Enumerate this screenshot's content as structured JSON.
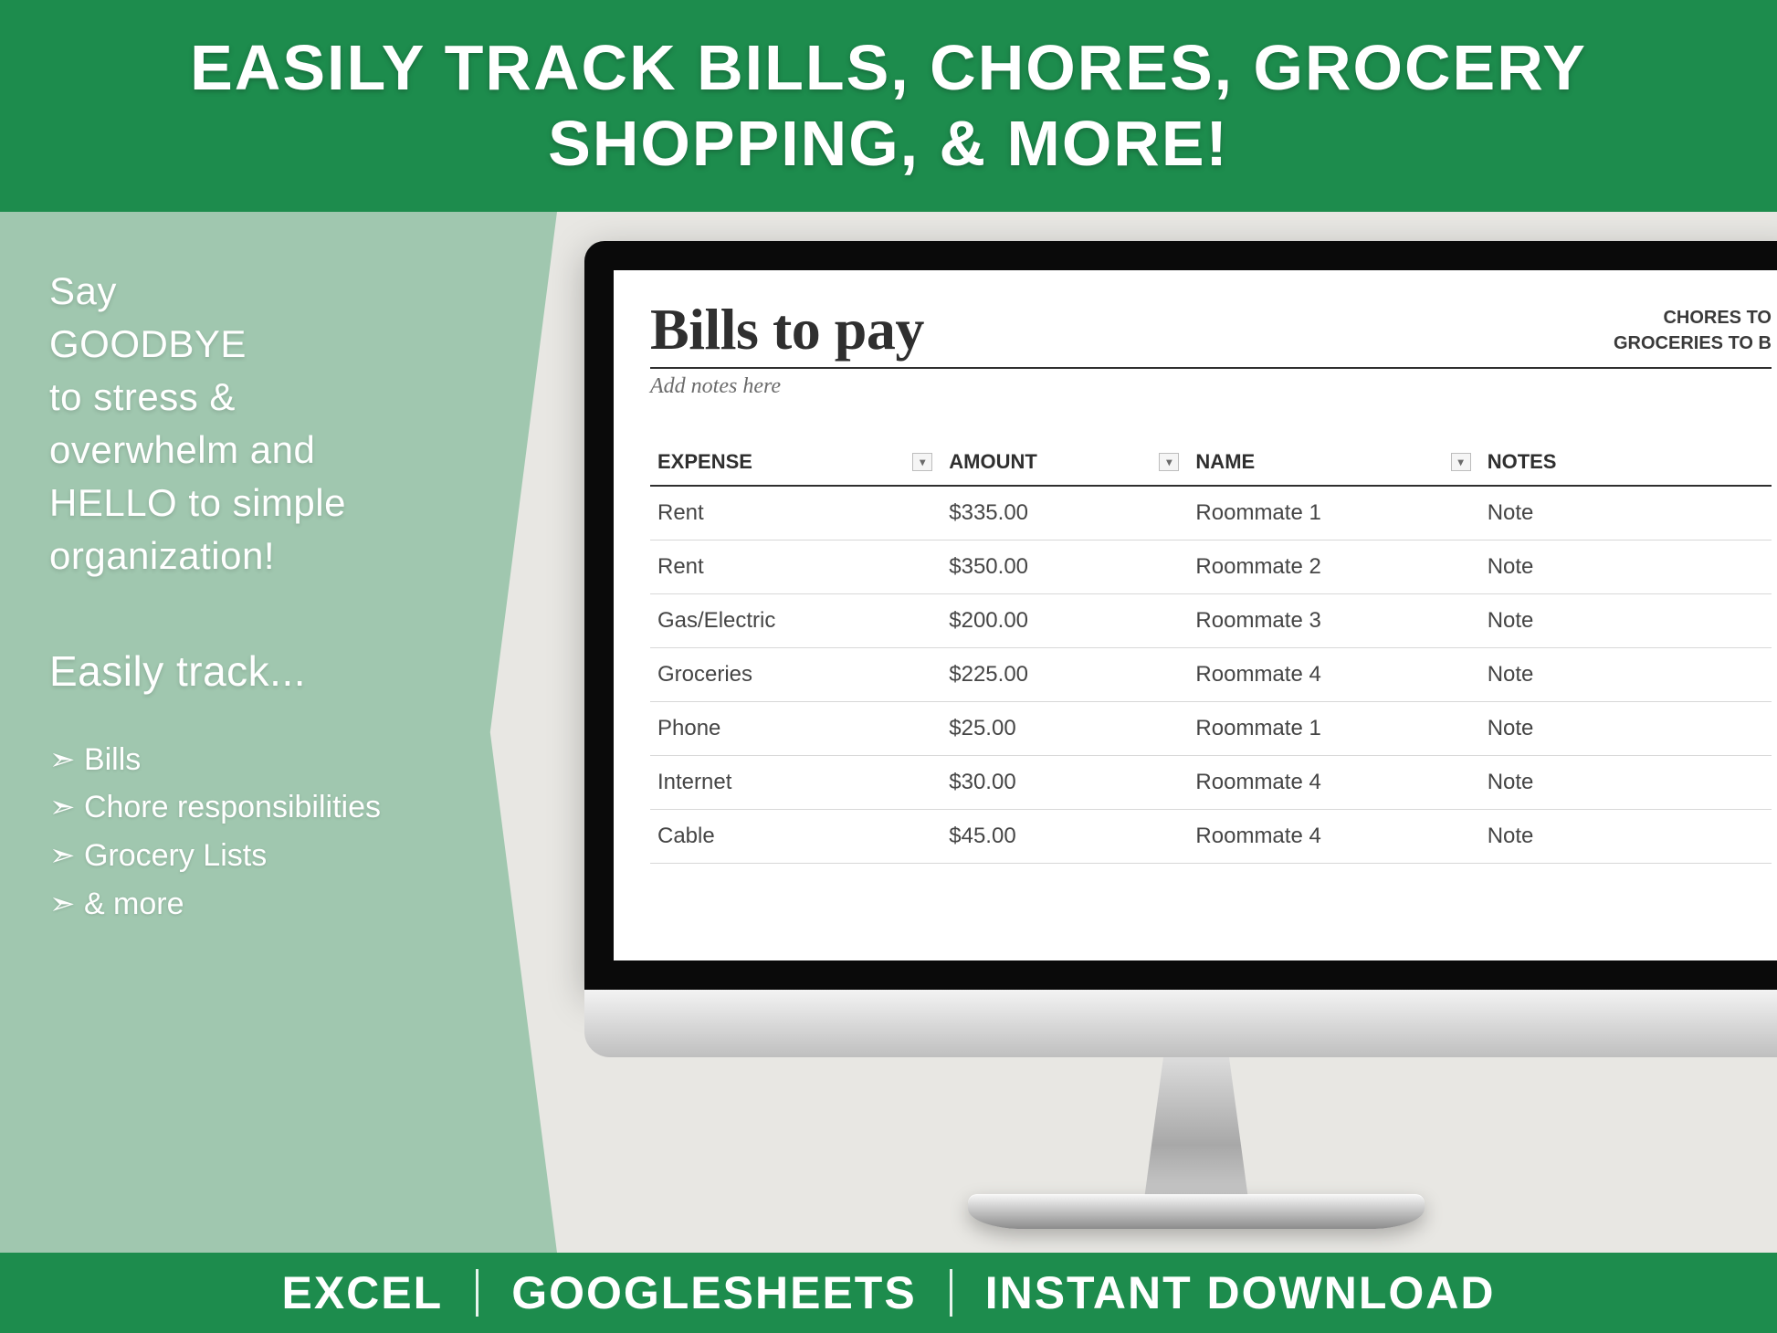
{
  "colors": {
    "brand_green": "#1d8c4d",
    "pale_green": "#a0c7af",
    "page_bg": "#e8e7e3",
    "text_white": "#ffffff",
    "sheet_text": "#3a3a3a",
    "sheet_row_border": "#d8d8d8",
    "sheet_title_underline": "#2f2f2f"
  },
  "header": {
    "title_line1": "EASILY TRACK BILLS, CHORES, GROCERY",
    "title_line2": "SHOPPING, & MORE!"
  },
  "left_panel": {
    "intro_lines": [
      "Say",
      "GOODBYE",
      "to stress &",
      "overwhelm and",
      "HELLO to simple",
      "organization!"
    ],
    "subhead": "Easily track...",
    "bullets": [
      "Bills",
      "Chore responsibilities",
      "Grocery Lists",
      "& more"
    ]
  },
  "sheet": {
    "title": "Bills to pay",
    "subnote": "Add notes here",
    "rightlinks": [
      "CHORES TO",
      "GROCERIES TO B"
    ],
    "columns": [
      "EXPENSE",
      "AMOUNT",
      "NAME",
      "NOTES"
    ],
    "rows": [
      {
        "expense": "Rent",
        "amount": "$335.00",
        "name": "Roommate 1",
        "notes": "Note"
      },
      {
        "expense": "Rent",
        "amount": "$350.00",
        "name": "Roommate 2",
        "notes": "Note"
      },
      {
        "expense": "Gas/Electric",
        "amount": "$200.00",
        "name": "Roommate 3",
        "notes": "Note"
      },
      {
        "expense": "Groceries",
        "amount": "$225.00",
        "name": "Roommate 4",
        "notes": "Note"
      },
      {
        "expense": "Phone",
        "amount": "$25.00",
        "name": "Roommate 1",
        "notes": "Note"
      },
      {
        "expense": "Internet",
        "amount": "$30.00",
        "name": "Roommate 4",
        "notes": "Note"
      },
      {
        "expense": "Cable",
        "amount": "$45.00",
        "name": "Roommate 4",
        "notes": "Note"
      }
    ]
  },
  "footer": {
    "items": [
      "EXCEL",
      "GOOGLESHEETS",
      "INSTANT DOWNLOAD"
    ]
  }
}
